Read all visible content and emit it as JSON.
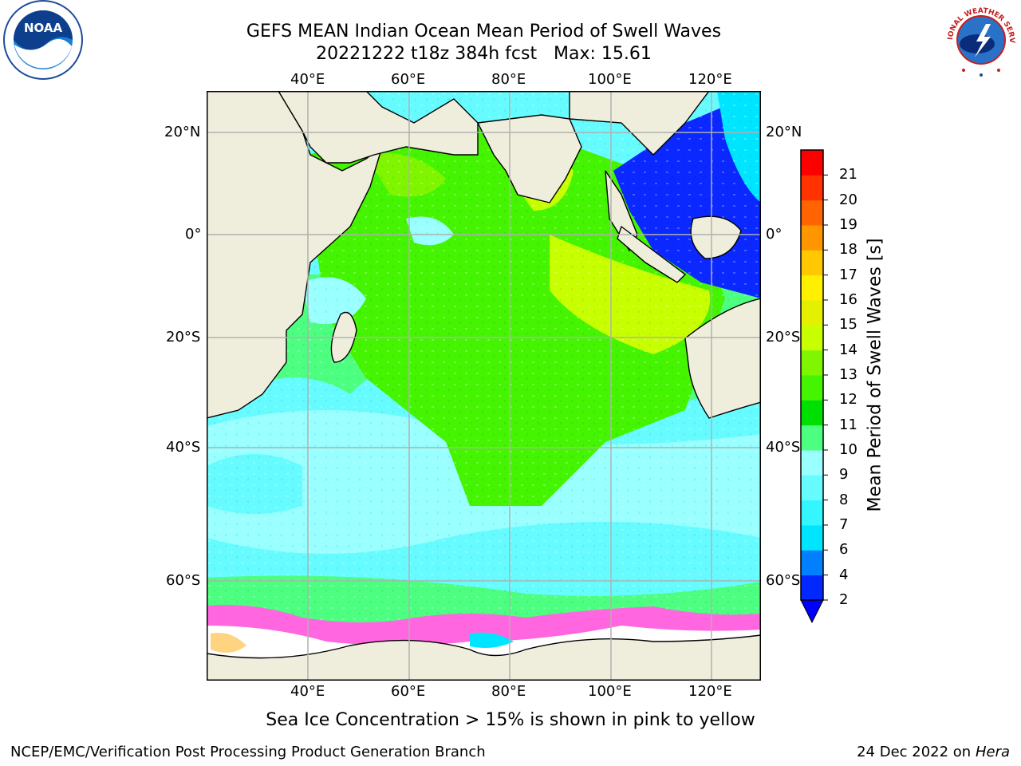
{
  "title": {
    "line1": "GEFS MEAN Indian Ocean Mean Period of Swell Waves",
    "line2": "20221222 t18z 384h fcst   Max: 15.61"
  },
  "map": {
    "lon_labels_top": [
      "40°E",
      "60°E",
      "80°E",
      "100°E",
      "120°E"
    ],
    "lon_labels_bottom": [
      "40°E",
      "60°E",
      "80°E",
      "100°E",
      "120°E"
    ],
    "lat_labels_left": [
      "20°N",
      "0°",
      "20°S",
      "40°S",
      "60°S"
    ],
    "lat_labels_right": [
      "20°N",
      "0°",
      "20°S",
      "40°S",
      "60°S"
    ],
    "land_color": "#efeedc",
    "ice_color": "#ffffff"
  },
  "colorbar": {
    "label": "Mean Period of Swell Waves [s]",
    "ticks": [
      "2",
      "4",
      "6",
      "7",
      "8",
      "9",
      "10",
      "11",
      "12",
      "13",
      "14",
      "15",
      "16",
      "17",
      "18",
      "19",
      "20",
      "21"
    ],
    "colors": [
      "#0028ff",
      "#0080ff",
      "#00e5ff",
      "#33f6ff",
      "#66fcff",
      "#99ffff",
      "#4dff80",
      "#00e000",
      "#44f400",
      "#80f500",
      "#c8ff00",
      "#e4f000",
      "#fff000",
      "#ffc800",
      "#ff9600",
      "#ff6400",
      "#ff3200",
      "#ff0000"
    ],
    "underflow_color": "#0000ff"
  },
  "notes": {
    "ice": "Sea Ice Concentration > 15% is shown in pink to yellow",
    "credits": "NCEP/EMC/Verification Post Processing Product Generation Branch",
    "date": "24 Dec 2022 on",
    "host": "Hera"
  },
  "logos": {
    "noaa_text": "NOAA",
    "nws_text": "NATIONAL WEATHER SERVICE"
  }
}
